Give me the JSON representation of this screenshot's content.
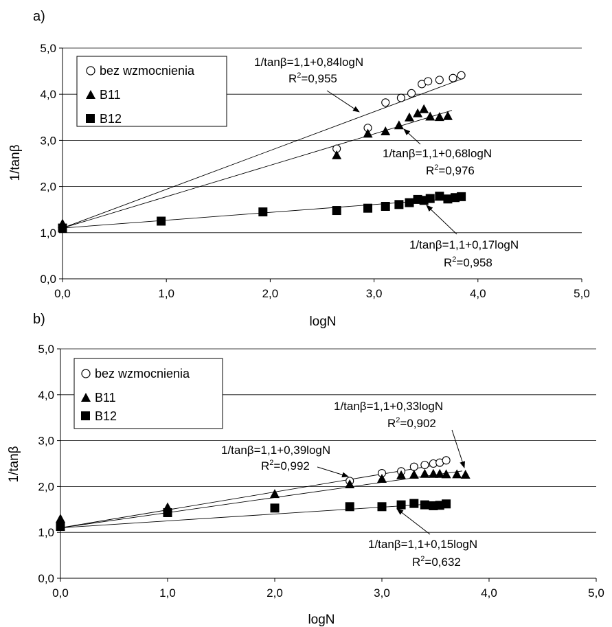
{
  "chart_data": [
    {
      "panel_label": "a)",
      "type": "scatter",
      "xlabel": "logN",
      "ylabel": "1/tanβ",
      "xlim": [
        0,
        5
      ],
      "ylim": [
        0,
        5
      ],
      "xticks": [
        "0,0",
        "1,0",
        "2,0",
        "3,0",
        "4,0",
        "5,0"
      ],
      "yticks": [
        "0,0",
        "1,0",
        "2,0",
        "3,0",
        "4,0",
        "5,0"
      ],
      "grid": "horizontal",
      "legend": {
        "placement": "top-left",
        "entries": [
          "bez wzmocnienia",
          "B11",
          "B12"
        ]
      },
      "series": [
        {
          "name": "bez wzmocnienia",
          "marker": "open-circle",
          "x": [
            2.64,
            2.94,
            3.11,
            3.26,
            3.36,
            3.46,
            3.52,
            3.63,
            3.76,
            3.84
          ],
          "y": [
            2.82,
            3.27,
            3.82,
            3.92,
            4.02,
            4.22,
            4.28,
            4.31,
            4.35,
            4.41
          ]
        },
        {
          "name": "B11",
          "marker": "filled-triangle",
          "x": [
            0.0,
            2.64,
            2.94,
            3.11,
            3.24,
            3.34,
            3.42,
            3.48,
            3.54,
            3.63,
            3.71
          ],
          "y": [
            1.2,
            2.68,
            3.15,
            3.2,
            3.33,
            3.5,
            3.59,
            3.68,
            3.52,
            3.51,
            3.53
          ]
        },
        {
          "name": "B12",
          "marker": "filled-square",
          "x": [
            0.0,
            0.95,
            1.93,
            2.64,
            2.94,
            3.11,
            3.24,
            3.34,
            3.42,
            3.48,
            3.54,
            3.63,
            3.71,
            3.78,
            3.84
          ],
          "y": [
            1.1,
            1.25,
            1.45,
            1.48,
            1.53,
            1.57,
            1.61,
            1.65,
            1.72,
            1.7,
            1.74,
            1.79,
            1.73,
            1.76,
            1.78
          ]
        }
      ],
      "fits": [
        {
          "intercept": 1.1,
          "slope": 0.84,
          "x_end": 3.85
        },
        {
          "intercept": 1.1,
          "slope": 0.68,
          "x_end": 3.75
        },
        {
          "intercept": 1.1,
          "slope": 0.17,
          "x_end": 3.85
        }
      ],
      "annotations": [
        {
          "equation": "1/tanβ=1,1+0,84logN",
          "r2_prefix": "R",
          "r2_suffix": "=0,955"
        },
        {
          "equation": "1/tanβ=1,1+0,68logN",
          "r2_prefix": "R",
          "r2_suffix": "=0,976"
        },
        {
          "equation": "1/tanβ=1,1+0,17logN",
          "r2_prefix": "R",
          "r2_suffix": "=0,958"
        }
      ]
    },
    {
      "panel_label": "b)",
      "type": "scatter",
      "xlabel": "logN",
      "ylabel": "1/tanβ",
      "xlim": [
        0,
        5
      ],
      "ylim": [
        0,
        5
      ],
      "xticks": [
        "0,0",
        "1,0",
        "2,0",
        "3,0",
        "4,0",
        "5,0"
      ],
      "yticks": [
        "0,0",
        "1,0",
        "2,0",
        "3,0",
        "4,0",
        "5,0"
      ],
      "grid": "horizontal",
      "legend": {
        "placement": "top-left",
        "entries": [
          "bez wzmocnienia",
          "B11",
          "B12"
        ]
      },
      "series": [
        {
          "name": "bez wzmocnienia",
          "marker": "open-circle",
          "x": [
            2.7,
            3.0,
            3.18,
            3.3,
            3.4,
            3.48,
            3.54,
            3.6
          ],
          "y": [
            2.12,
            2.29,
            2.33,
            2.43,
            2.47,
            2.5,
            2.52,
            2.57
          ]
        },
        {
          "name": "B11",
          "marker": "filled-triangle",
          "x": [
            0.0,
            1.0,
            2.0,
            2.7,
            3.0,
            3.18,
            3.3,
            3.4,
            3.48,
            3.54,
            3.6,
            3.7,
            3.78
          ],
          "y": [
            1.3,
            1.55,
            1.84,
            2.05,
            2.17,
            2.25,
            2.26,
            2.28,
            2.28,
            2.28,
            2.27,
            2.27,
            2.26
          ]
        },
        {
          "name": "B12",
          "marker": "filled-square",
          "x": [
            0.0,
            1.0,
            2.0,
            2.7,
            3.0,
            3.18,
            3.3,
            3.4,
            3.48,
            3.54,
            3.6
          ],
          "y": [
            1.13,
            1.43,
            1.53,
            1.56,
            1.56,
            1.6,
            1.63,
            1.6,
            1.58,
            1.59,
            1.62
          ]
        }
      ],
      "fits": [
        {
          "intercept": 1.1,
          "slope": 0.39,
          "x_end": 3.6
        },
        {
          "intercept": 1.1,
          "slope": 0.33,
          "x_end": 3.75
        },
        {
          "intercept": 1.1,
          "slope": 0.15,
          "x_end": 3.6
        }
      ],
      "annotations": [
        {
          "equation": "1/tanβ=1,1+0,33logN",
          "r2_prefix": "R",
          "r2_suffix": "=0,902"
        },
        {
          "equation": "1/tanβ=1,1+0,39logN",
          "r2_prefix": "R",
          "r2_suffix": "=0,992"
        },
        {
          "equation": "1/tanβ=1,1+0,15logN",
          "r2_prefix": "R",
          "r2_suffix": "=0,632"
        }
      ]
    }
  ]
}
